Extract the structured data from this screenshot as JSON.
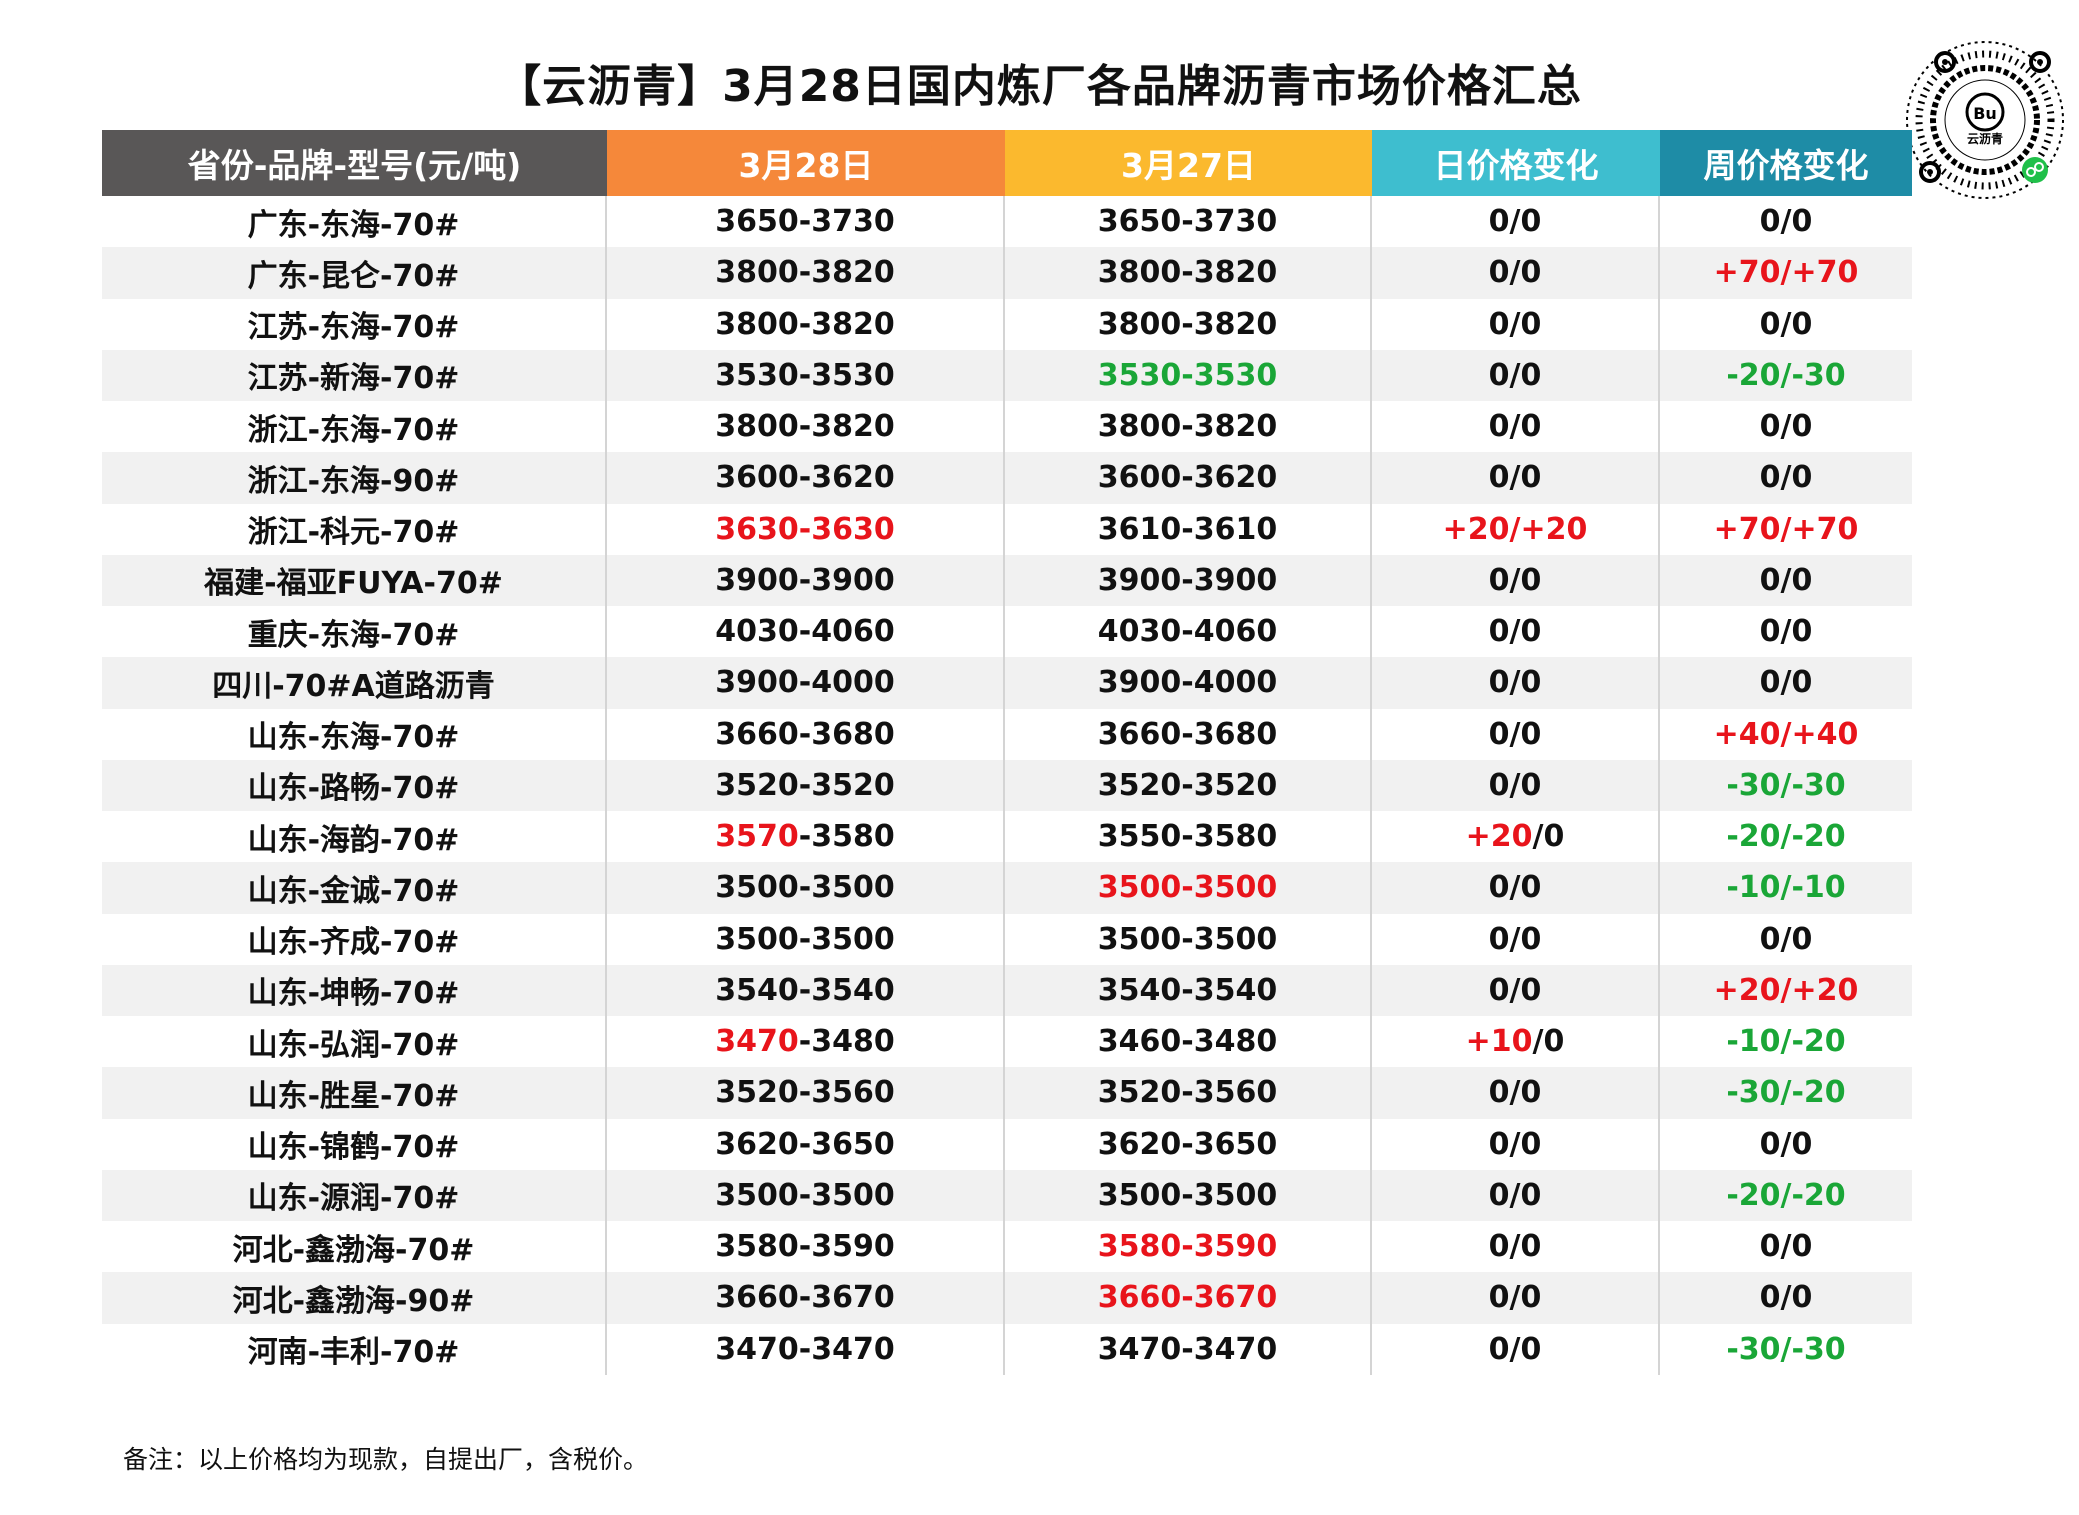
{
  "title": "【云沥青】3月28日国内炼厂各品牌沥青市场价格汇总",
  "logo_text": "云沥青",
  "colors": {
    "header_col1": "#595757",
    "header_col2": "#f5883a",
    "header_col3": "#fbb92e",
    "header_col4": "#3ebecf",
    "header_col5": "#1e8ca6",
    "red": "#e8141b",
    "green": "#1aa637"
  },
  "headers": [
    "省份-品牌-型号(元/吨)",
    "3月28日",
    "3月27日",
    "日价格变化",
    "周价格变化"
  ],
  "rows": [
    {
      "name": "广东-东海-70#",
      "d28": [
        [
          "3650-3730",
          "black"
        ]
      ],
      "d27": [
        [
          "3650-3730",
          "black"
        ]
      ],
      "day": [
        [
          "0/0",
          "black"
        ]
      ],
      "week": [
        [
          "0/0",
          "black"
        ]
      ]
    },
    {
      "name": "广东-昆仑-70#",
      "d28": [
        [
          "3800-3820",
          "black"
        ]
      ],
      "d27": [
        [
          "3800-3820",
          "black"
        ]
      ],
      "day": [
        [
          "0/0",
          "black"
        ]
      ],
      "week": [
        [
          "+70/+70",
          "red"
        ]
      ]
    },
    {
      "name": "江苏-东海-70#",
      "d28": [
        [
          "3800-3820",
          "black"
        ]
      ],
      "d27": [
        [
          "3800-3820",
          "black"
        ]
      ],
      "day": [
        [
          "0/0",
          "black"
        ]
      ],
      "week": [
        [
          "0/0",
          "black"
        ]
      ]
    },
    {
      "name": "江苏-新海-70#",
      "d28": [
        [
          "3530-3530",
          "black"
        ]
      ],
      "d27": [
        [
          "3530-3530",
          "green"
        ]
      ],
      "day": [
        [
          "0/0",
          "black"
        ]
      ],
      "week": [
        [
          "-20/-30",
          "green"
        ]
      ]
    },
    {
      "name": "浙江-东海-70#",
      "d28": [
        [
          "3800-3820",
          "black"
        ]
      ],
      "d27": [
        [
          "3800-3820",
          "black"
        ]
      ],
      "day": [
        [
          "0/0",
          "black"
        ]
      ],
      "week": [
        [
          "0/0",
          "black"
        ]
      ]
    },
    {
      "name": "浙江-东海-90#",
      "d28": [
        [
          "3600-3620",
          "black"
        ]
      ],
      "d27": [
        [
          "3600-3620",
          "black"
        ]
      ],
      "day": [
        [
          "0/0",
          "black"
        ]
      ],
      "week": [
        [
          "0/0",
          "black"
        ]
      ]
    },
    {
      "name": "浙江-科元-70#",
      "d28": [
        [
          "3630-3630",
          "red"
        ]
      ],
      "d27": [
        [
          "3610-3610",
          "black"
        ]
      ],
      "day": [
        [
          "+20/+20",
          "red"
        ]
      ],
      "week": [
        [
          "+70/+70",
          "red"
        ]
      ]
    },
    {
      "name": "福建-福亚FUYA-70#",
      "d28": [
        [
          "3900-3900",
          "black"
        ]
      ],
      "d27": [
        [
          "3900-3900",
          "black"
        ]
      ],
      "day": [
        [
          "0/0",
          "black"
        ]
      ],
      "week": [
        [
          "0/0",
          "black"
        ]
      ]
    },
    {
      "name": "重庆-东海-70#",
      "d28": [
        [
          "4030-4060",
          "black"
        ]
      ],
      "d27": [
        [
          "4030-4060",
          "black"
        ]
      ],
      "day": [
        [
          "0/0",
          "black"
        ]
      ],
      "week": [
        [
          "0/0",
          "black"
        ]
      ]
    },
    {
      "name": "四川-70#A道路沥青",
      "d28": [
        [
          "3900-4000",
          "black"
        ]
      ],
      "d27": [
        [
          "3900-4000",
          "black"
        ]
      ],
      "day": [
        [
          "0/0",
          "black"
        ]
      ],
      "week": [
        [
          "0/0",
          "black"
        ]
      ]
    },
    {
      "name": "山东-东海-70#",
      "d28": [
        [
          "3660-3680",
          "black"
        ]
      ],
      "d27": [
        [
          "3660-3680",
          "black"
        ]
      ],
      "day": [
        [
          "0/0",
          "black"
        ]
      ],
      "week": [
        [
          "+40/+40",
          "red"
        ]
      ]
    },
    {
      "name": "山东-路畅-70#",
      "d28": [
        [
          "3520-3520",
          "black"
        ]
      ],
      "d27": [
        [
          "3520-3520",
          "black"
        ]
      ],
      "day": [
        [
          "0/0",
          "black"
        ]
      ],
      "week": [
        [
          "-30/-30",
          "green"
        ]
      ]
    },
    {
      "name": "山东-海韵-70#",
      "d28": [
        [
          "3570",
          "red"
        ],
        [
          "-3580",
          "black"
        ]
      ],
      "d27": [
        [
          "3550-3580",
          "black"
        ]
      ],
      "day": [
        [
          "+20",
          "red"
        ],
        [
          "/0",
          "black"
        ]
      ],
      "week": [
        [
          "-20/-20",
          "green"
        ]
      ]
    },
    {
      "name": "山东-金诚-70#",
      "d28": [
        [
          "3500-3500",
          "black"
        ]
      ],
      "d27": [
        [
          "3500-3500",
          "red"
        ]
      ],
      "day": [
        [
          "0/0",
          "black"
        ]
      ],
      "week": [
        [
          "-10/-10",
          "green"
        ]
      ]
    },
    {
      "name": "山东-齐成-70#",
      "d28": [
        [
          "3500-3500",
          "black"
        ]
      ],
      "d27": [
        [
          "3500-3500",
          "black"
        ]
      ],
      "day": [
        [
          "0/0",
          "black"
        ]
      ],
      "week": [
        [
          "0/0",
          "black"
        ]
      ]
    },
    {
      "name": "山东-坤畅-70#",
      "d28": [
        [
          "3540-3540",
          "black"
        ]
      ],
      "d27": [
        [
          "3540-3540",
          "black"
        ]
      ],
      "day": [
        [
          "0/0",
          "black"
        ]
      ],
      "week": [
        [
          "+20/+20",
          "red"
        ]
      ]
    },
    {
      "name": "山东-弘润-70#",
      "d28": [
        [
          "3470",
          "red"
        ],
        [
          "-3480",
          "black"
        ]
      ],
      "d27": [
        [
          "3460-3480",
          "black"
        ]
      ],
      "day": [
        [
          "+10",
          "red"
        ],
        [
          "/0",
          "black"
        ]
      ],
      "week": [
        [
          "-10/-20",
          "green"
        ]
      ]
    },
    {
      "name": "山东-胜星-70#",
      "d28": [
        [
          "3520-3560",
          "black"
        ]
      ],
      "d27": [
        [
          "3520-3560",
          "black"
        ]
      ],
      "day": [
        [
          "0/0",
          "black"
        ]
      ],
      "week": [
        [
          "-30/-20",
          "green"
        ]
      ]
    },
    {
      "name": "山东-锦鹤-70#",
      "d28": [
        [
          "3620-3650",
          "black"
        ]
      ],
      "d27": [
        [
          "3620-3650",
          "black"
        ]
      ],
      "day": [
        [
          "0/0",
          "black"
        ]
      ],
      "week": [
        [
          "0/0",
          "black"
        ]
      ]
    },
    {
      "name": "山东-源润-70#",
      "d28": [
        [
          "3500-3500",
          "black"
        ]
      ],
      "d27": [
        [
          "3500-3500",
          "black"
        ]
      ],
      "day": [
        [
          "0/0",
          "black"
        ]
      ],
      "week": [
        [
          "-20/-20",
          "green"
        ]
      ]
    },
    {
      "name": "河北-鑫渤海-70#",
      "d28": [
        [
          "3580-3590",
          "black"
        ]
      ],
      "d27": [
        [
          "3580-3590",
          "red"
        ]
      ],
      "day": [
        [
          "0/0",
          "black"
        ]
      ],
      "week": [
        [
          "0/0",
          "black"
        ]
      ]
    },
    {
      "name": "河北-鑫渤海-90#",
      "d28": [
        [
          "3660-3670",
          "black"
        ]
      ],
      "d27": [
        [
          "3660-3670",
          "red"
        ]
      ],
      "day": [
        [
          "0/0",
          "black"
        ]
      ],
      "week": [
        [
          "0/0",
          "black"
        ]
      ]
    },
    {
      "name": "河南-丰利-70#",
      "d28": [
        [
          "3470-3470",
          "black"
        ]
      ],
      "d27": [
        [
          "3470-3470",
          "black"
        ]
      ],
      "day": [
        [
          "0/0",
          "black"
        ]
      ],
      "week": [
        [
          "-30/-30",
          "green"
        ]
      ]
    }
  ],
  "note": "备注：以上价格均为现款，自提出厂，含税价。"
}
